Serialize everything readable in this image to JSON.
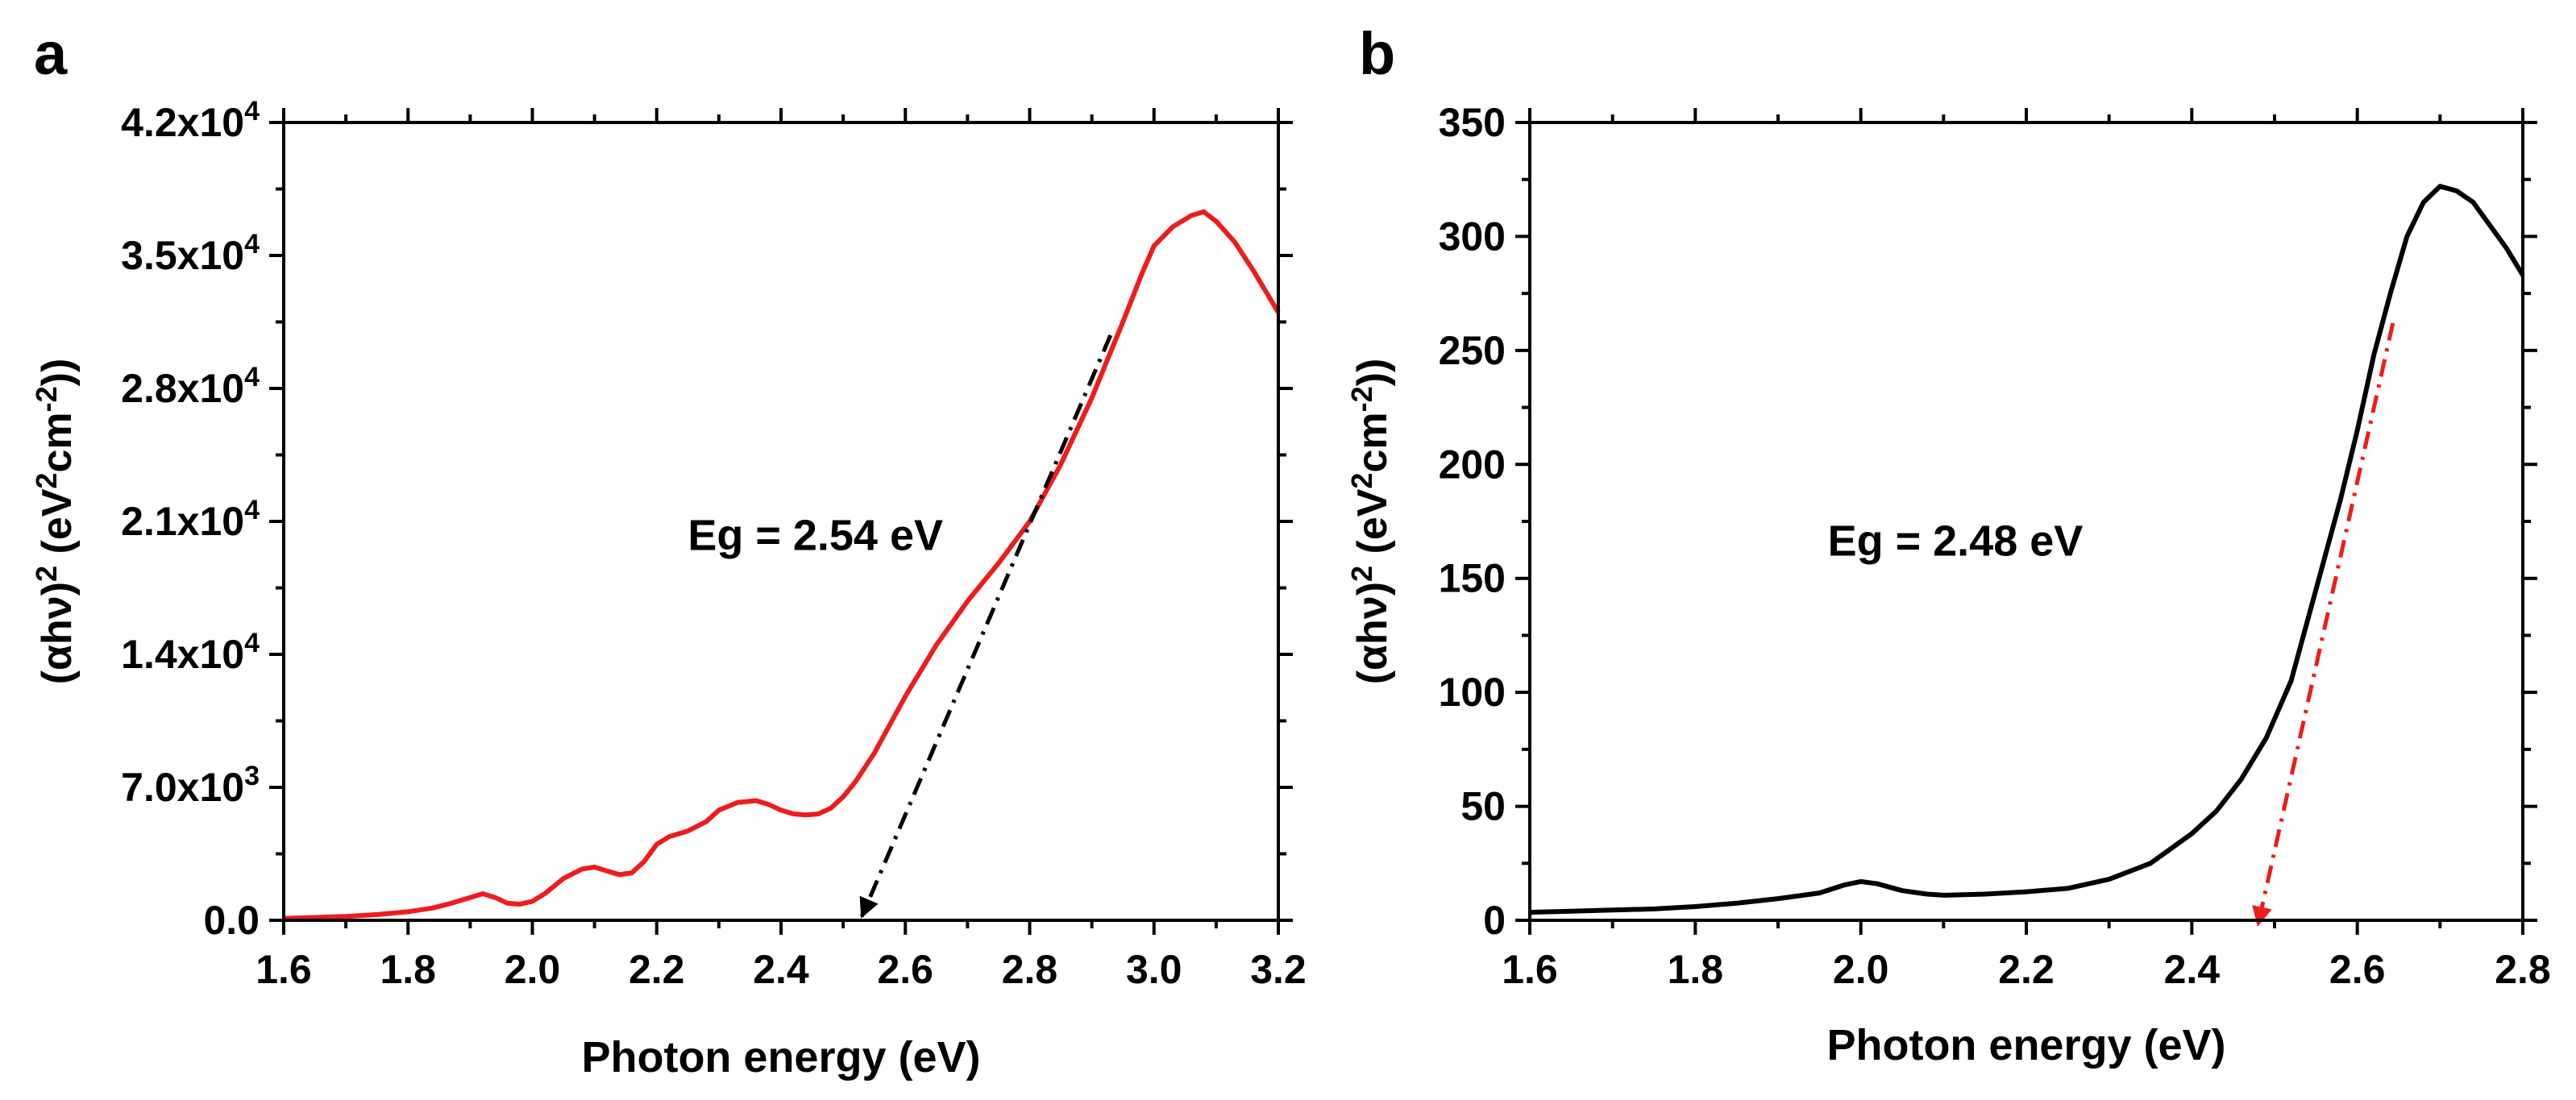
{
  "panels": [
    {
      "label": "a"
    },
    {
      "label": "b"
    }
  ],
  "chart_data": [
    {
      "type": "line",
      "panel": "a",
      "xlabel": "Photon energy (eV)",
      "ylabel": {
        "base": "(αhν)",
        "exp1": "2",
        "mid": " (eV",
        "exp2": "2",
        "mid2": "cm",
        "exp3": "-2",
        "end": "))"
      },
      "xlim": [
        1.6,
        3.2
      ],
      "ylim": [
        0,
        42000
      ],
      "xticks": [
        "1.6",
        "1.8",
        "2.0",
        "2.2",
        "2.4",
        "2.6",
        "2.8",
        "3.0",
        "3.2"
      ],
      "yticks": [
        {
          "value": 0,
          "label": "0.0",
          "exp": ""
        },
        {
          "value": 7000,
          "label": "7.0x10",
          "exp": "3"
        },
        {
          "value": 14000,
          "label": "1.4x10",
          "exp": "4"
        },
        {
          "value": 21000,
          "label": "2.1x10",
          "exp": "4"
        },
        {
          "value": 28000,
          "label": "2.8x10",
          "exp": "4"
        },
        {
          "value": 35000,
          "label": "3.5x10",
          "exp": "4"
        },
        {
          "value": 42000,
          "label": "4.2x10",
          "exp": "4"
        }
      ],
      "annotation": {
        "text": "Eg = 2.54 eV",
        "x": 2.25,
        "y": 19500
      },
      "line_color": "#ee1c1c",
      "fit_color": "#000000",
      "fit_line": {
        "x": [
          2.93,
          2.53
        ],
        "y": [
          30800,
          200
        ]
      },
      "series": [
        {
          "x": [
            1.6,
            1.65,
            1.7,
            1.75,
            1.8,
            1.84,
            1.87,
            1.9,
            1.92,
            1.94,
            1.96,
            1.98,
            2.0,
            2.02,
            2.05,
            2.08,
            2.1,
            2.12,
            2.14,
            2.16,
            2.18,
            2.2,
            2.22,
            2.25,
            2.28,
            2.3,
            2.33,
            2.36,
            2.38,
            2.4,
            2.42,
            2.44,
            2.46,
            2.48,
            2.5,
            2.52,
            2.55,
            2.6,
            2.65,
            2.7,
            2.75,
            2.8,
            2.85,
            2.9,
            2.95,
            2.98,
            3.0,
            3.03,
            3.06,
            3.08,
            3.1,
            3.13,
            3.16,
            3.2
          ],
          "y": [
            100,
            150,
            200,
            300,
            450,
            650,
            900,
            1200,
            1400,
            1200,
            900,
            850,
            1000,
            1400,
            2200,
            2700,
            2800,
            2600,
            2400,
            2500,
            3100,
            4000,
            4400,
            4700,
            5200,
            5800,
            6200,
            6300,
            6100,
            5800,
            5600,
            5550,
            5600,
            5900,
            6500,
            7300,
            8800,
            11800,
            14500,
            16800,
            18800,
            21000,
            24000,
            27500,
            31500,
            34000,
            35500,
            36500,
            37100,
            37300,
            36800,
            35700,
            34200,
            32000
          ]
        }
      ]
    },
    {
      "type": "line",
      "panel": "b",
      "xlabel": "Photon energy (eV)",
      "ylabel": {
        "base": "(αhν)",
        "exp1": "2",
        "mid": " (eV",
        "exp2": "2",
        "mid2": "cm",
        "exp3": "-2",
        "end": "))"
      },
      "xlim": [
        1.6,
        2.8
      ],
      "ylim": [
        0,
        350
      ],
      "xticks": [
        "1.6",
        "1.8",
        "2.0",
        "2.2",
        "2.4",
        "2.6",
        "2.8"
      ],
      "yticks": [
        {
          "value": 0,
          "label": "0",
          "exp": ""
        },
        {
          "value": 50,
          "label": "50",
          "exp": ""
        },
        {
          "value": 100,
          "label": "100",
          "exp": ""
        },
        {
          "value": 150,
          "label": "150",
          "exp": ""
        },
        {
          "value": 200,
          "label": "200",
          "exp": ""
        },
        {
          "value": 250,
          "label": "250",
          "exp": ""
        },
        {
          "value": 300,
          "label": "300",
          "exp": ""
        },
        {
          "value": 350,
          "label": "350",
          "exp": ""
        }
      ],
      "annotation": {
        "text": "Eg = 2.48 eV",
        "x": 1.96,
        "y": 160
      },
      "line_color": "#000000",
      "fit_color": "#ee1c1c",
      "fit_line": {
        "x": [
          2.643,
          2.48
        ],
        "y": [
          262,
          -2
        ]
      },
      "series": [
        {
          "x": [
            1.6,
            1.65,
            1.7,
            1.75,
            1.8,
            1.85,
            1.9,
            1.95,
            1.98,
            2.0,
            2.02,
            2.05,
            2.08,
            2.1,
            2.15,
            2.2,
            2.25,
            2.3,
            2.35,
            2.4,
            2.43,
            2.46,
            2.49,
            2.52,
            2.55,
            2.58,
            2.6,
            2.62,
            2.64,
            2.66,
            2.68,
            2.7,
            2.72,
            2.74,
            2.76,
            2.78,
            2.8
          ],
          "y": [
            3.5,
            4,
            4.5,
            5,
            6,
            7.5,
            9.5,
            12,
            15.5,
            17,
            16,
            13,
            11.5,
            11,
            11.5,
            12.5,
            14,
            18,
            25,
            38,
            48,
            62,
            80,
            105,
            145,
            185,
            215,
            248,
            275,
            300,
            315,
            322,
            320,
            315,
            305,
            295,
            283
          ]
        }
      ]
    }
  ]
}
